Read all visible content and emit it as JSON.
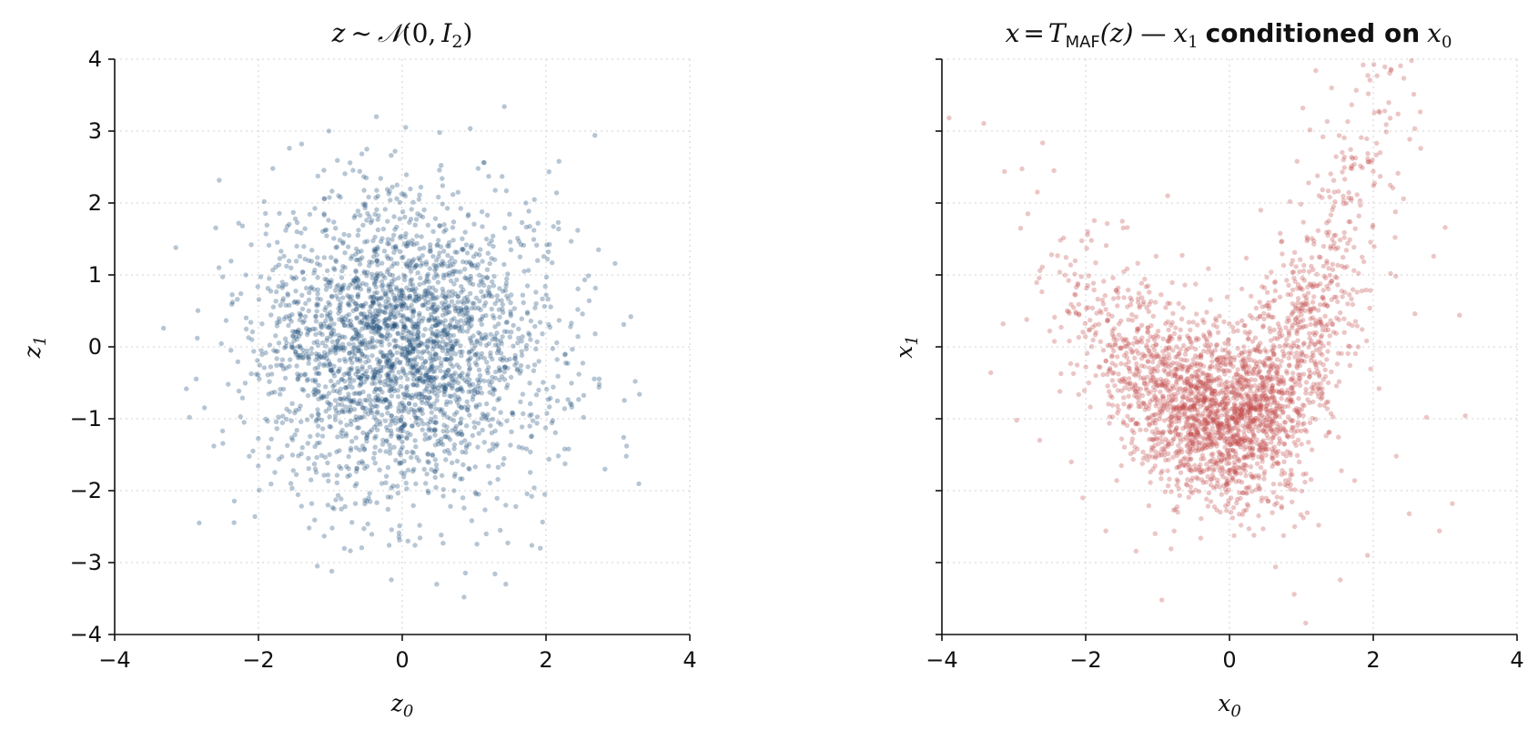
{
  "chart_data": [
    {
      "type": "scatter",
      "title": "z ~ 𝒩(0, I₂)",
      "title_parts": {
        "var": "z",
        "tilde": "~",
        "dist": "𝒩",
        "open": "(0,",
        "cov": "I",
        "cov_sub": "2",
        "close": ")"
      },
      "xlabel": "z",
      "xlabel_sub": "0",
      "ylabel": "z",
      "ylabel_sub": "1",
      "xlim": [
        -4,
        4
      ],
      "ylim": [
        -4,
        4
      ],
      "xticks": [
        -4,
        -2,
        0,
        2,
        4
      ],
      "yticks": [
        -4,
        -3,
        -2,
        -1,
        0,
        1,
        2,
        3,
        4
      ],
      "xtick_labels": [
        "−4",
        "−2",
        "0",
        "2",
        "4"
      ],
      "ytick_labels": [
        "−4",
        "−3",
        "−2",
        "−1",
        "0",
        "1",
        "2",
        "3",
        "4"
      ],
      "grid": true,
      "color": "#1f4e79",
      "series": [
        {
          "points": [
            [
              -3.32,
              0.26
            ],
            [
              -3.15,
              1.38
            ],
            [
              -2.96,
              -0.98
            ],
            [
              -2.85,
              0.12
            ],
            [
              -2.62,
              -1.38
            ],
            [
              -2.55,
              1.1
            ],
            [
              -2.42,
              -0.52
            ],
            [
              -2.36,
              0.62
            ],
            [
              -2.2,
              -1.05
            ],
            [
              -2.1,
              1.42
            ],
            [
              -2.05,
              -2.36
            ],
            [
              -1.95,
              0.32
            ],
            [
              -1.92,
              2.02
            ],
            [
              -1.86,
              -1.52
            ],
            [
              -1.8,
              2.48
            ],
            [
              -1.72,
              0.84
            ],
            [
              -1.7,
              -0.66
            ],
            [
              -1.62,
              1.62
            ],
            [
              -1.55,
              -1.9
            ],
            [
              -1.45,
              -0.15
            ],
            [
              -1.4,
              2.82
            ],
            [
              -1.3,
              0.5
            ],
            [
              -1.26,
              -2.18
            ],
            [
              -1.18,
              1.24
            ],
            [
              -1.12,
              -1.02
            ],
            [
              -1.02,
              3.0
            ],
            [
              -0.98,
              -3.12
            ],
            [
              -0.92,
              0.02
            ],
            [
              -0.86,
              2.08
            ],
            [
              -0.8,
              -0.48
            ],
            [
              -0.74,
              1.55
            ],
            [
              -0.7,
              -2.44
            ],
            [
              -0.62,
              0.82
            ],
            [
              -0.55,
              -1.38
            ],
            [
              -0.5,
              2.35
            ],
            [
              -0.4,
              -0.32
            ],
            [
              -0.36,
              3.2
            ],
            [
              -0.3,
              1.02
            ],
            [
              -0.22,
              -1.8
            ],
            [
              -0.18,
              0.38
            ],
            [
              -0.1,
              2.72
            ],
            [
              -0.05,
              -0.85
            ],
            [
              0.02,
              0.12
            ],
            [
              0.08,
              -2.7
            ],
            [
              0.14,
              1.48
            ],
            [
              0.2,
              -0.24
            ],
            [
              0.26,
              2.22
            ],
            [
              0.32,
              -1.22
            ],
            [
              0.4,
              0.66
            ],
            [
              0.48,
              -3.3
            ],
            [
              0.52,
              2.98
            ],
            [
              0.58,
              -0.62
            ],
            [
              0.66,
              1.18
            ],
            [
              0.72,
              -2.0
            ],
            [
              0.8,
              0.22
            ],
            [
              0.86,
              -3.48
            ],
            [
              0.92,
              1.84
            ],
            [
              1.0,
              -1.05
            ],
            [
              1.06,
              0.54
            ],
            [
              1.14,
              2.56
            ],
            [
              1.2,
              -1.66
            ],
            [
              1.28,
              0.98
            ],
            [
              1.36,
              -0.32
            ],
            [
              1.42,
              3.34
            ],
            [
              1.44,
              -3.3
            ],
            [
              1.5,
              1.46
            ],
            [
              1.58,
              -2.22
            ],
            [
              1.66,
              0.08
            ],
            [
              1.72,
              2.0
            ],
            [
              1.8,
              -1.24
            ],
            [
              1.86,
              0.76
            ],
            [
              1.92,
              -2.8
            ],
            [
              2.02,
              1.22
            ],
            [
              2.1,
              -0.56
            ],
            [
              2.18,
              2.58
            ],
            [
              2.26,
              -1.42
            ],
            [
              2.34,
              0.28
            ],
            [
              2.44,
              1.62
            ],
            [
              2.52,
              -0.98
            ],
            [
              2.6,
              0.64
            ],
            [
              2.68,
              2.94
            ],
            [
              2.74,
              -0.52
            ],
            [
              2.82,
              -1.7
            ],
            [
              2.96,
              1.16
            ],
            [
              3.08,
              -1.26
            ],
            [
              3.18,
              0.42
            ],
            [
              3.24,
              -0.48
            ],
            [
              3.3,
              -0.66
            ]
          ]
        }
      ]
    },
    {
      "type": "scatter",
      "title": "x = T_MAF(z) — x₁ conditioned on x₀",
      "title_parts": {
        "lhs": "x",
        "eq": "=",
        "T": "T",
        "T_sub": "MAF",
        "arg": "(z)",
        "dash": "—",
        "x1": "x",
        "x1_sub": "1",
        "cond": "conditioned on",
        "x0": "x",
        "x0_sub": "0"
      },
      "xlabel": "x",
      "xlabel_sub": "0",
      "ylabel": "x",
      "ylabel_sub": "1",
      "xlim": [
        -4,
        4
      ],
      "ylim": [
        -4,
        4
      ],
      "xticks": [
        -4,
        -2,
        0,
        2,
        4
      ],
      "yticks": [
        -4,
        -3,
        -2,
        -1,
        0,
        1,
        2,
        3,
        4
      ],
      "xtick_labels": [
        "−4",
        "−2",
        "0",
        "2",
        "4"
      ],
      "shared_y": true,
      "grid": true,
      "color": "#c44e4e",
      "series": [
        {
          "points": [
            [
              -3.32,
              -0.36
            ],
            [
              -3.15,
              0.32
            ],
            [
              -2.96,
              -1.02
            ],
            [
              -2.82,
              0.38
            ],
            [
              -2.64,
              -1.3
            ],
            [
              -2.5,
              0.22
            ],
            [
              -2.36,
              -0.62
            ],
            [
              -2.2,
              -1.6
            ],
            [
              -2.04,
              -2.1
            ],
            [
              -1.92,
              1.48
            ],
            [
              -1.86,
              -0.4
            ],
            [
              -1.72,
              -2.56
            ],
            [
              -1.62,
              0.96
            ],
            [
              -1.5,
              -1.28
            ],
            [
              -1.42,
              1.66
            ],
            [
              -1.3,
              -2.84
            ],
            [
              -1.22,
              0.3
            ],
            [
              -1.1,
              -1.74
            ],
            [
              -1.02,
              1.26
            ],
            [
              -0.94,
              -3.52
            ],
            [
              -0.86,
              2.1
            ],
            [
              -0.8,
              -0.68
            ],
            [
              -0.72,
              -2.3
            ],
            [
              -0.62,
              0.86
            ],
            [
              -0.54,
              -1.46
            ],
            [
              -0.46,
              0.12
            ],
            [
              -0.4,
              -2.66
            ],
            [
              -0.3,
              -0.84
            ],
            [
              -0.22,
              -1.96
            ],
            [
              -0.14,
              -0.22
            ],
            [
              -0.06,
              -1.28
            ],
            [
              0.02,
              -2.3
            ],
            [
              0.1,
              -0.62
            ],
            [
              0.18,
              -1.68
            ],
            [
              0.26,
              0.18
            ],
            [
              0.34,
              -2.62
            ],
            [
              0.42,
              0.62
            ],
            [
              0.5,
              -1.02
            ],
            [
              0.58,
              1.04
            ],
            [
              0.64,
              -3.06
            ],
            [
              0.72,
              1.46
            ],
            [
              0.78,
              -1.86
            ],
            [
              0.84,
              2.02
            ],
            [
              0.9,
              -3.44
            ],
            [
              0.94,
              2.58
            ],
            [
              0.98,
              -0.26
            ],
            [
              1.02,
              3.32
            ],
            [
              1.06,
              -3.84
            ],
            [
              1.1,
              2.28
            ],
            [
              1.16,
              0.62
            ],
            [
              1.2,
              3.84
            ],
            [
              1.24,
              -2.48
            ],
            [
              1.3,
              2.92
            ],
            [
              1.36,
              -0.86
            ],
            [
              1.42,
              3.6
            ],
            [
              1.48,
              1.36
            ],
            [
              1.54,
              -3.24
            ],
            [
              1.6,
              2.64
            ],
            [
              1.66,
              0.32
            ],
            [
              1.74,
              -1.86
            ],
            [
              1.8,
              1.82
            ],
            [
              1.86,
              3.92
            ],
            [
              1.92,
              -2.9
            ],
            [
              2.0,
              2.44
            ],
            [
              2.08,
              -0.58
            ],
            [
              2.16,
              3.28
            ],
            [
              2.24,
              1.02
            ],
            [
              2.32,
              -1.52
            ],
            [
              2.42,
              2.06
            ],
            [
              2.5,
              -2.32
            ],
            [
              2.58,
              0.46
            ],
            [
              2.66,
              2.76
            ],
            [
              2.74,
              -0.98
            ],
            [
              2.84,
              1.26
            ],
            [
              2.92,
              -2.56
            ],
            [
              3.0,
              1.66
            ],
            [
              3.1,
              -2.18
            ],
            [
              3.2,
              0.44
            ],
            [
              3.28,
              -0.96
            ]
          ]
        }
      ]
    }
  ]
}
